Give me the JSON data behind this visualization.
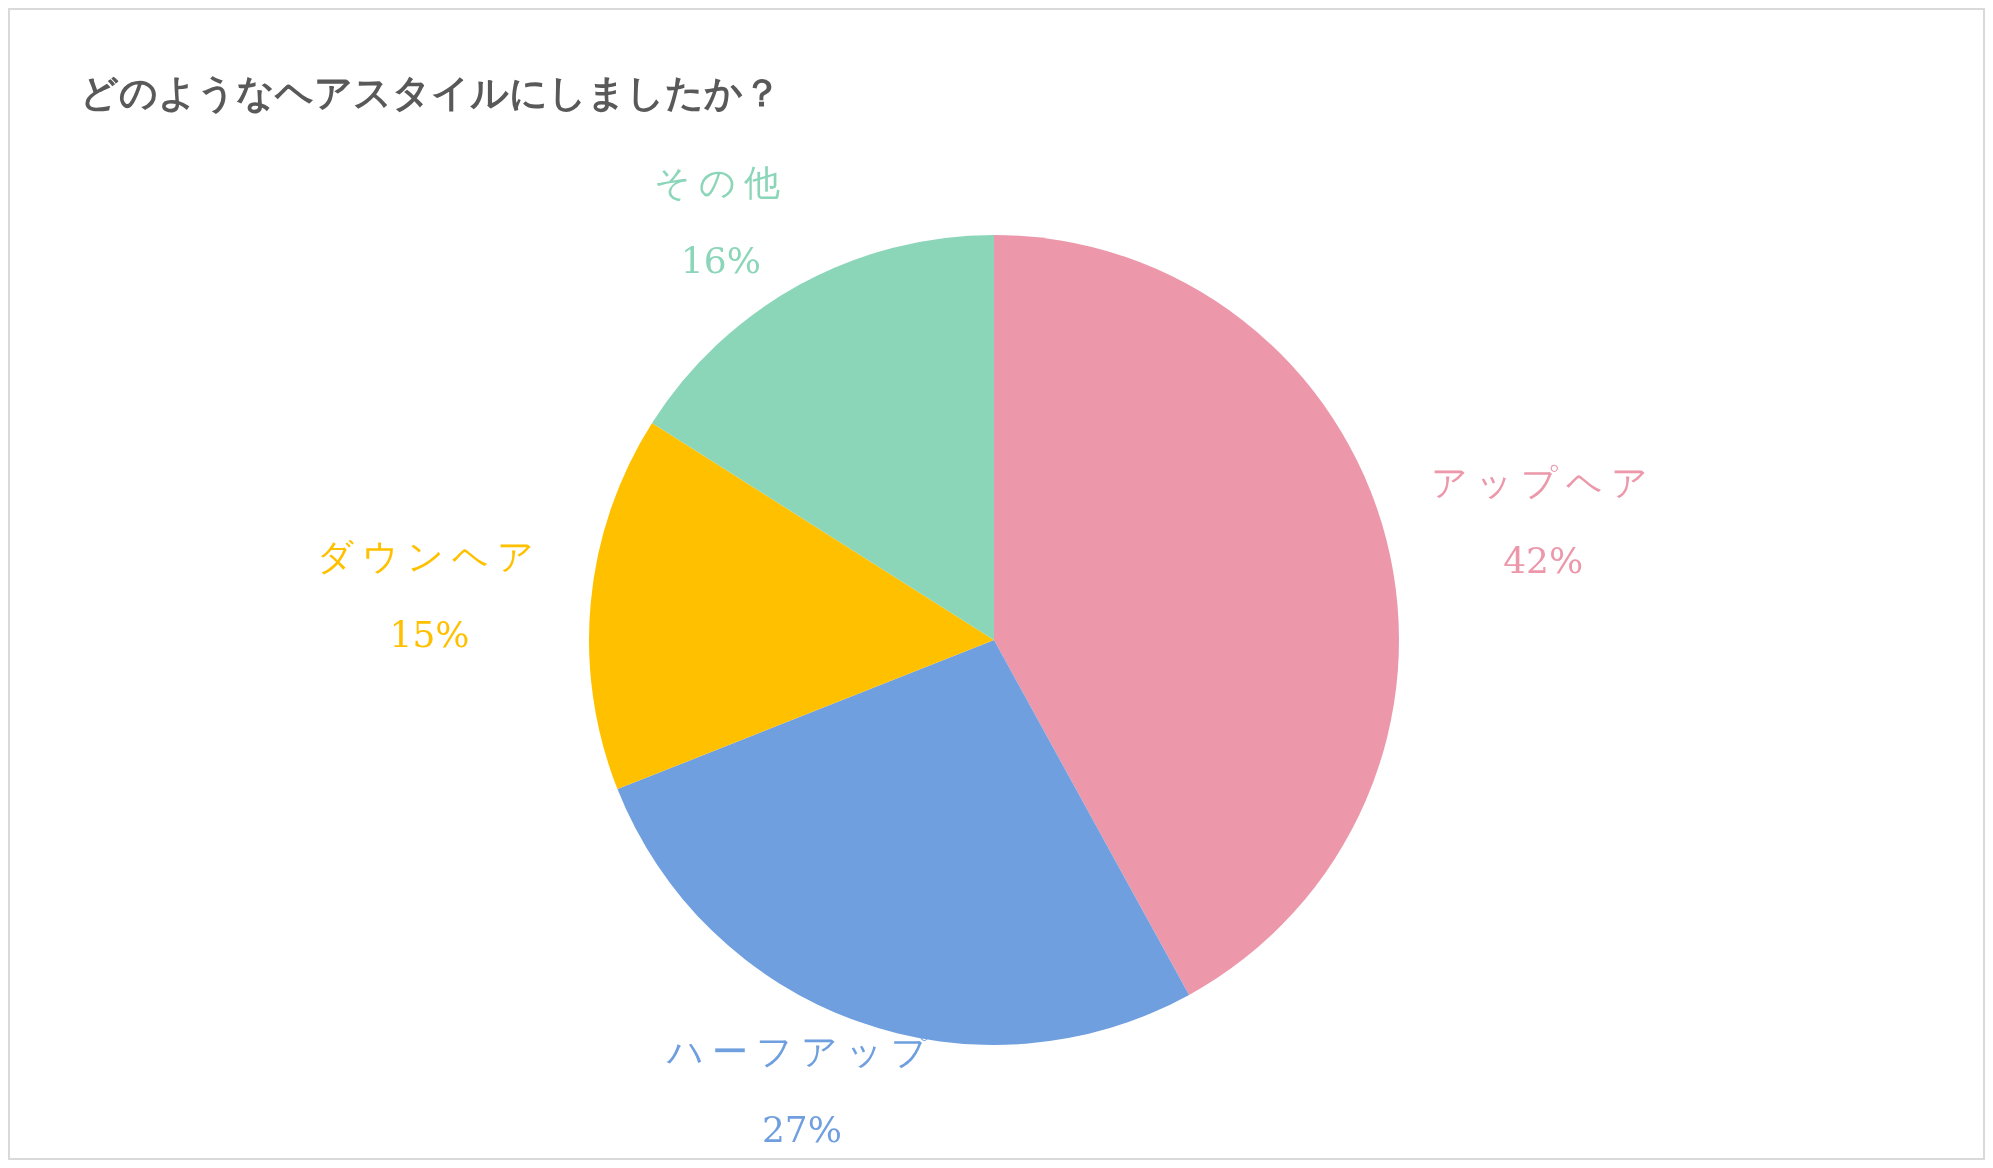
{
  "chart_data": {
    "type": "pie",
    "title": "どのようなヘアスタイルにしましたか？",
    "categories": [
      "アップヘア",
      "ハーフアップ",
      "ダウンヘア",
      "その他"
    ],
    "values": [
      42,
      27,
      15,
      16
    ],
    "value_labels": [
      "42%",
      "27%",
      "15%",
      "16%"
    ],
    "colors": [
      "#ec98aa",
      "#6f9fdf",
      "#ffc000",
      "#8bd5b8"
    ],
    "legend": false
  }
}
